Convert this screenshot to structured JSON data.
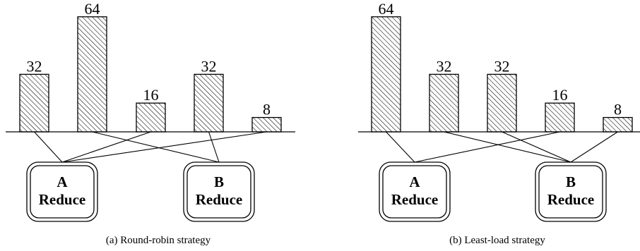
{
  "panels": [
    {
      "caption": "(a)  Round-robin strategy",
      "bars": [
        {
          "value": 32,
          "label": "32",
          "reducer": "A"
        },
        {
          "value": 64,
          "label": "64",
          "reducer": "B"
        },
        {
          "value": 16,
          "label": "16",
          "reducer": "A"
        },
        {
          "value": 32,
          "label": "32",
          "reducer": "B"
        },
        {
          "value": 8,
          "label": "8",
          "reducer": "A"
        }
      ],
      "reducers": [
        {
          "id": "A",
          "letter": "A",
          "label": "Reduce"
        },
        {
          "id": "B",
          "letter": "B",
          "label": "Reduce"
        }
      ]
    },
    {
      "caption": "(b)  Least-load strategy",
      "bars": [
        {
          "value": 64,
          "label": "64",
          "reducer": "A"
        },
        {
          "value": 32,
          "label": "32",
          "reducer": "B"
        },
        {
          "value": 32,
          "label": "32",
          "reducer": "B"
        },
        {
          "value": 16,
          "label": "16",
          "reducer": "A"
        },
        {
          "value": 8,
          "label": "8",
          "reducer": "B"
        }
      ],
      "reducers": [
        {
          "id": "A",
          "letter": "A",
          "label": "Reduce"
        },
        {
          "id": "B",
          "letter": "B",
          "label": "Reduce"
        }
      ]
    }
  ]
}
